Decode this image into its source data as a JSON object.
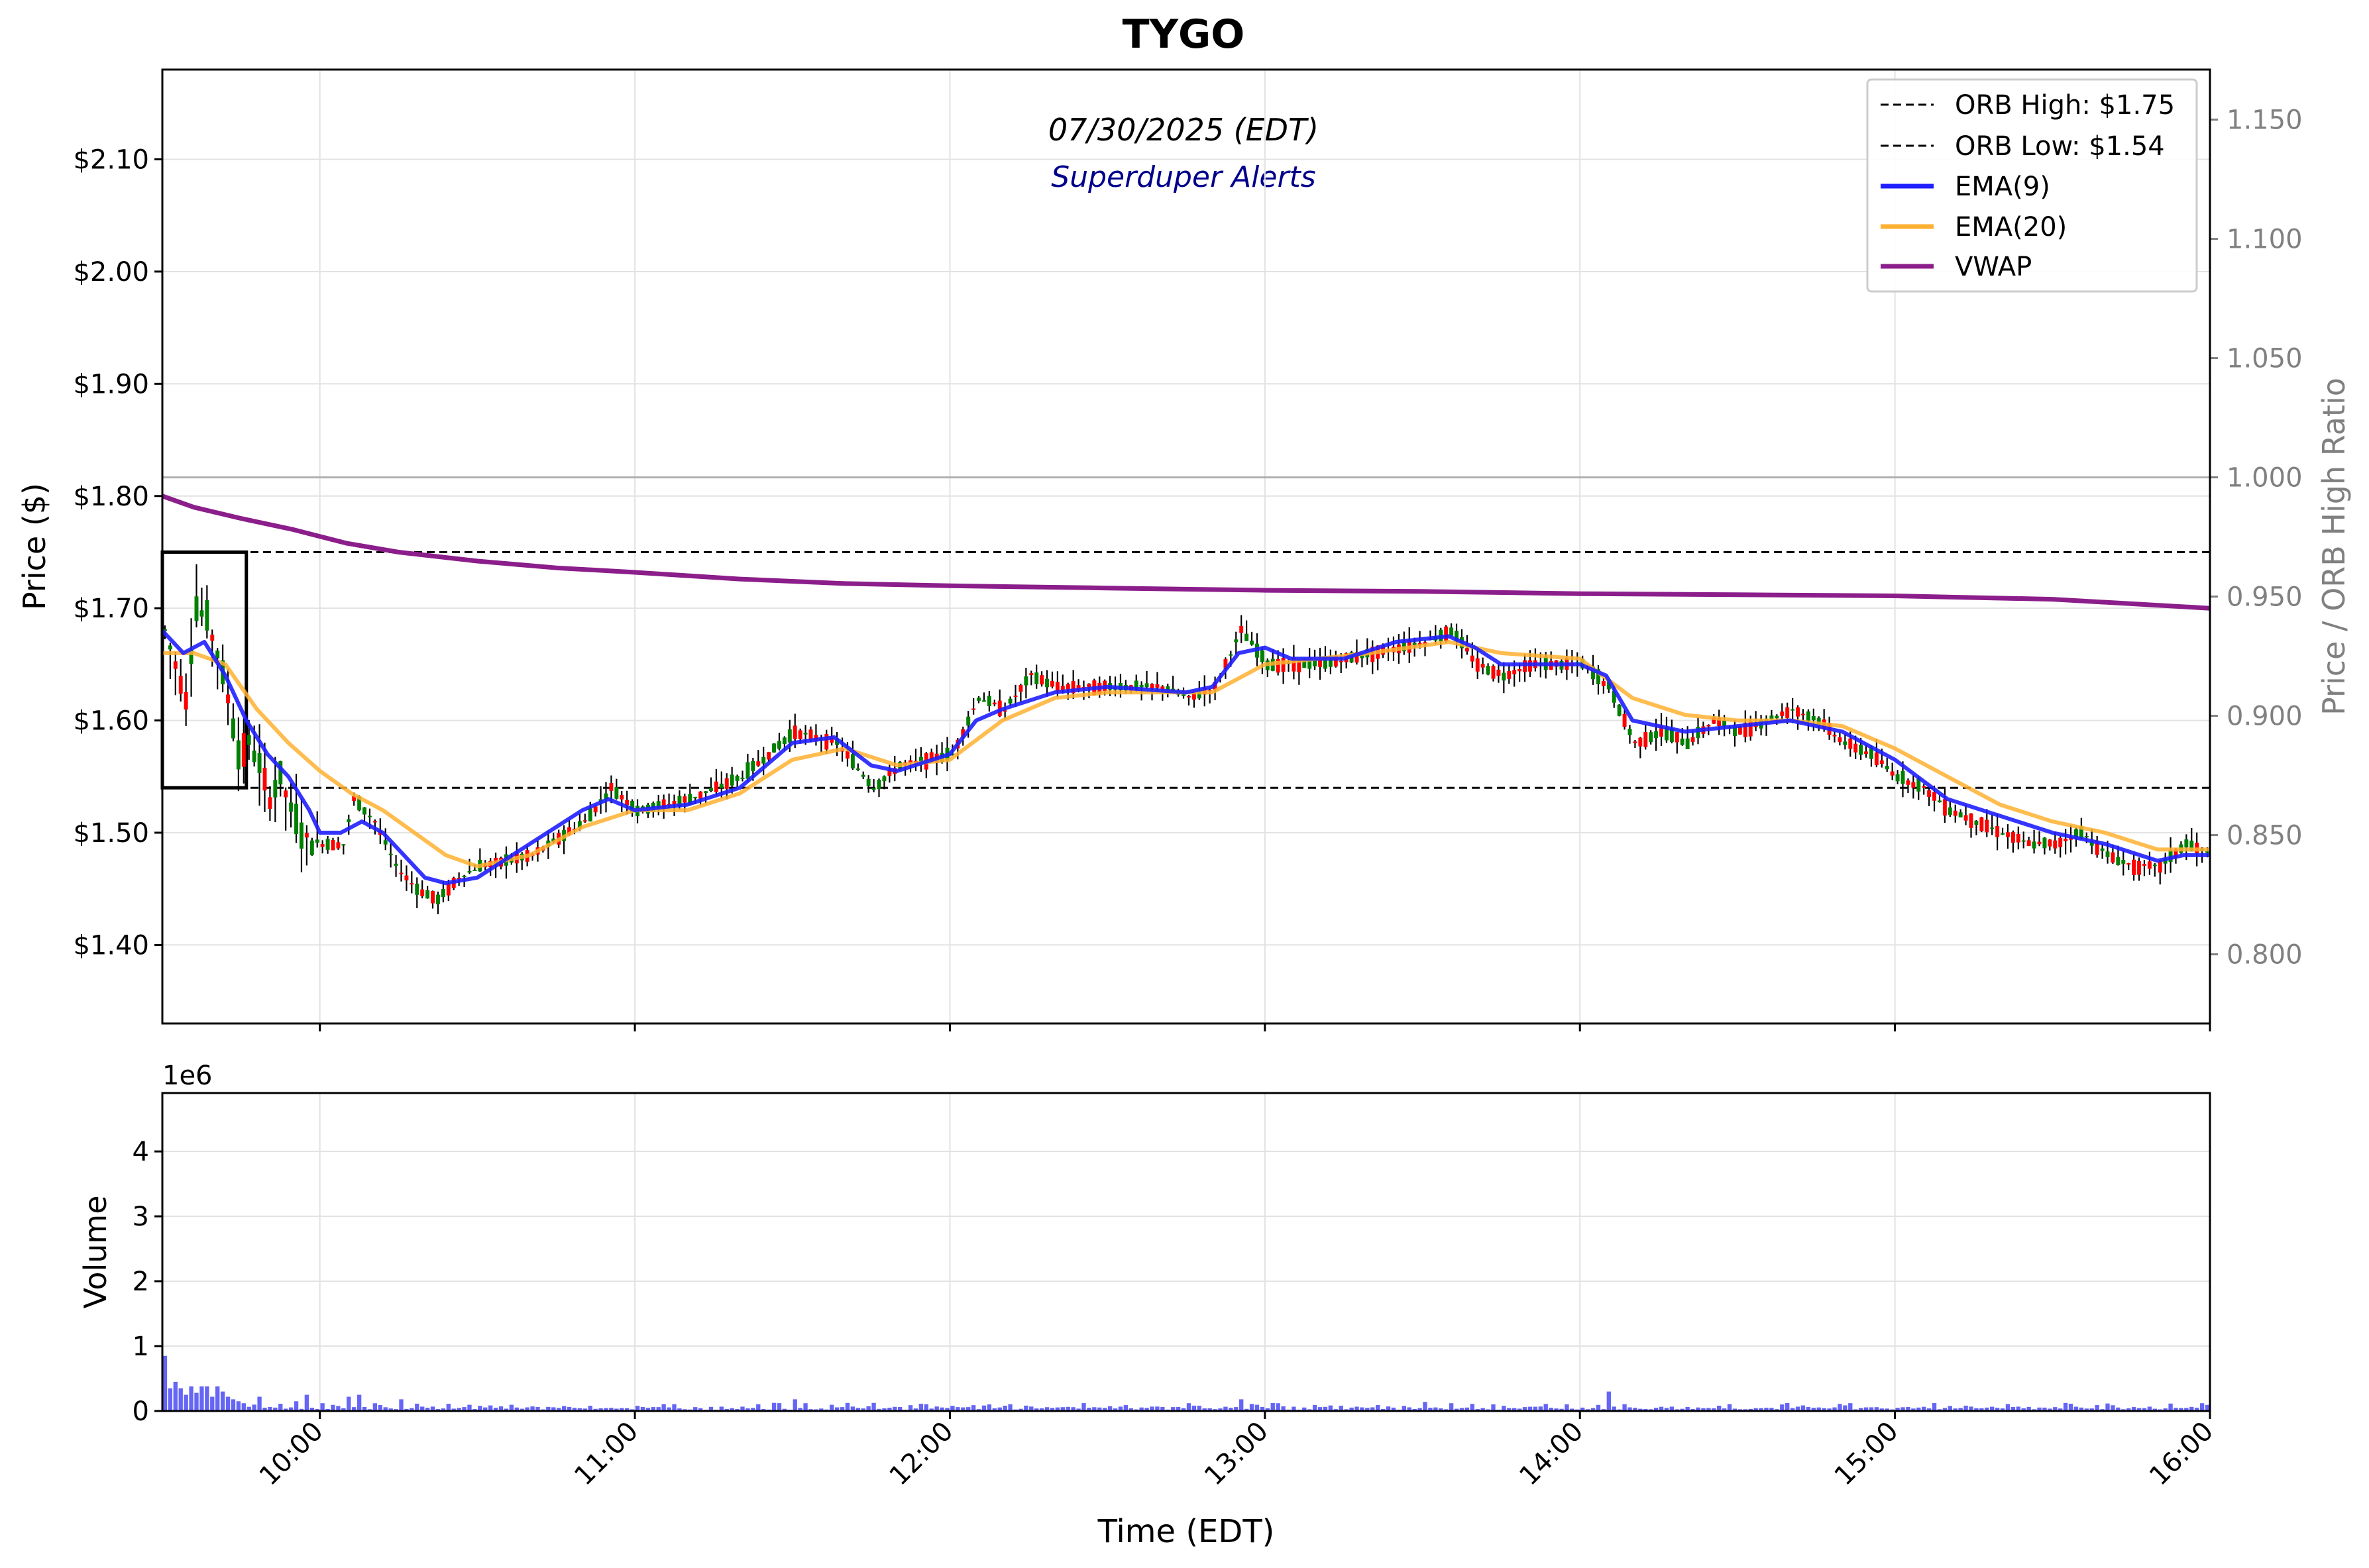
{
  "title": "TYGO",
  "date_text": "07/30/2025 (EDT)",
  "subtitle": "Superduper Alerts",
  "colors": {
    "up": "#008000",
    "down": "#ff0000",
    "wick": "#000000",
    "ema9": "#1f1fff",
    "ema20": "#ffb030",
    "vwap": "#8b1e8b",
    "volume": "#4a4af5",
    "grid": "#e2e2e2",
    "ratio_axis": "#808080",
    "subtitle": "#00008b"
  },
  "chart_data": [
    {
      "type": "candlestick",
      "title": "TYGO",
      "xlabel": "Time (EDT)",
      "ylabel": "Price ($)",
      "y2label": "Price / ORB High Ratio",
      "xlim": [
        "09:30",
        "16:00"
      ],
      "ylim": [
        1.33,
        2.18
      ],
      "y2lim": [
        0.771,
        1.171
      ],
      "y_ticks": [
        "$1.40",
        "$1.50",
        "$1.60",
        "$1.70",
        "$1.80",
        "$1.90",
        "$2.00",
        "$2.10"
      ],
      "y2_ticks": [
        "0.800",
        "0.850",
        "0.900",
        "0.950",
        "1.000",
        "1.050",
        "1.100",
        "1.150"
      ],
      "x_ticks": [
        "10:00",
        "11:00",
        "12:00",
        "13:00",
        "14:00",
        "15:00",
        "16:00"
      ],
      "grid": true,
      "legend_position": "top-right",
      "legend": [
        "ORB High: $1.75",
        "ORB Low: $1.54",
        "EMA(9)",
        "EMA(20)",
        "VWAP"
      ],
      "orb_high": 1.75,
      "orb_low": 1.54,
      "orb_window": [
        "09:30",
        "09:46"
      ],
      "ratio_one_line": 1.0,
      "price_path": [
        [
          "09:30",
          1.68
        ],
        [
          "09:32",
          1.65
        ],
        [
          "09:34",
          1.62
        ],
        [
          "09:36",
          1.7
        ],
        [
          "09:38",
          1.69
        ],
        [
          "09:40",
          1.66
        ],
        [
          "09:42",
          1.62
        ],
        [
          "09:44",
          1.57
        ],
        [
          "09:46",
          1.58
        ],
        [
          "09:48",
          1.56
        ],
        [
          "09:50",
          1.53
        ],
        [
          "09:52",
          1.55
        ],
        [
          "09:54",
          1.52
        ],
        [
          "09:56",
          1.5
        ],
        [
          "09:58",
          1.49
        ],
        [
          "10:00",
          1.49
        ],
        [
          "10:04",
          1.49
        ],
        [
          "10:06",
          1.53
        ],
        [
          "10:10",
          1.51
        ],
        [
          "10:14",
          1.47
        ],
        [
          "10:18",
          1.45
        ],
        [
          "10:22",
          1.44
        ],
        [
          "10:26",
          1.46
        ],
        [
          "10:30",
          1.47
        ],
        [
          "10:40",
          1.48
        ],
        [
          "10:50",
          1.51
        ],
        [
          "10:55",
          1.54
        ],
        [
          "11:00",
          1.52
        ],
        [
          "11:10",
          1.53
        ],
        [
          "11:20",
          1.55
        ],
        [
          "11:25",
          1.57
        ],
        [
          "11:30",
          1.59
        ],
        [
          "11:38",
          1.58
        ],
        [
          "11:45",
          1.54
        ],
        [
          "11:50",
          1.56
        ],
        [
          "12:00",
          1.57
        ],
        [
          "12:05",
          1.62
        ],
        [
          "12:10",
          1.61
        ],
        [
          "12:15",
          1.64
        ],
        [
          "12:20",
          1.63
        ],
        [
          "12:30",
          1.63
        ],
        [
          "12:40",
          1.63
        ],
        [
          "12:45",
          1.62
        ],
        [
          "12:50",
          1.63
        ],
        [
          "12:55",
          1.68
        ],
        [
          "13:00",
          1.65
        ],
        [
          "13:10",
          1.65
        ],
        [
          "13:20",
          1.66
        ],
        [
          "13:30",
          1.67
        ],
        [
          "13:35",
          1.68
        ],
        [
          "13:40",
          1.65
        ],
        [
          "13:45",
          1.64
        ],
        [
          "13:50",
          1.65
        ],
        [
          "14:00",
          1.65
        ],
        [
          "14:05",
          1.63
        ],
        [
          "14:10",
          1.58
        ],
        [
          "14:15",
          1.59
        ],
        [
          "14:20",
          1.58
        ],
        [
          "14:25",
          1.6
        ],
        [
          "14:30",
          1.59
        ],
        [
          "14:35",
          1.6
        ],
        [
          "14:40",
          1.61
        ],
        [
          "14:45",
          1.6
        ],
        [
          "14:50",
          1.58
        ],
        [
          "14:55",
          1.57
        ],
        [
          "15:00",
          1.55
        ],
        [
          "15:05",
          1.54
        ],
        [
          "15:10",
          1.52
        ],
        [
          "15:15",
          1.51
        ],
        [
          "15:20",
          1.5
        ],
        [
          "15:25",
          1.49
        ],
        [
          "15:30",
          1.49
        ],
        [
          "15:35",
          1.5
        ],
        [
          "15:40",
          1.48
        ],
        [
          "15:45",
          1.47
        ],
        [
          "15:50",
          1.47
        ],
        [
          "15:55",
          1.49
        ],
        [
          "16:00",
          1.48
        ]
      ],
      "ema9": [
        [
          "09:30",
          1.68
        ],
        [
          "09:34",
          1.66
        ],
        [
          "09:38",
          1.67
        ],
        [
          "09:42",
          1.64
        ],
        [
          "09:46",
          1.6
        ],
        [
          "09:50",
          1.57
        ],
        [
          "09:54",
          1.55
        ],
        [
          "09:58",
          1.52
        ],
        [
          "10:00",
          1.5
        ],
        [
          "10:04",
          1.5
        ],
        [
          "10:08",
          1.51
        ],
        [
          "10:12",
          1.5
        ],
        [
          "10:16",
          1.48
        ],
        [
          "10:20",
          1.46
        ],
        [
          "10:24",
          1.455
        ],
        [
          "10:30",
          1.46
        ],
        [
          "10:40",
          1.49
        ],
        [
          "10:50",
          1.52
        ],
        [
          "10:55",
          1.53
        ],
        [
          "11:00",
          1.52
        ],
        [
          "11:10",
          1.525
        ],
        [
          "11:20",
          1.54
        ],
        [
          "11:30",
          1.58
        ],
        [
          "11:38",
          1.585
        ],
        [
          "11:45",
          1.56
        ],
        [
          "11:50",
          1.555
        ],
        [
          "12:00",
          1.57
        ],
        [
          "12:05",
          1.6
        ],
        [
          "12:10",
          1.61
        ],
        [
          "12:20",
          1.625
        ],
        [
          "12:30",
          1.63
        ],
        [
          "12:45",
          1.625
        ],
        [
          "12:50",
          1.63
        ],
        [
          "12:55",
          1.66
        ],
        [
          "13:00",
          1.665
        ],
        [
          "13:05",
          1.655
        ],
        [
          "13:15",
          1.655
        ],
        [
          "13:25",
          1.67
        ],
        [
          "13:35",
          1.675
        ],
        [
          "13:40",
          1.665
        ],
        [
          "13:45",
          1.65
        ],
        [
          "14:00",
          1.65
        ],
        [
          "14:05",
          1.64
        ],
        [
          "14:10",
          1.6
        ],
        [
          "14:20",
          1.59
        ],
        [
          "14:30",
          1.595
        ],
        [
          "14:40",
          1.6
        ],
        [
          "14:50",
          1.59
        ],
        [
          "15:00",
          1.565
        ],
        [
          "15:10",
          1.53
        ],
        [
          "15:20",
          1.515
        ],
        [
          "15:30",
          1.5
        ],
        [
          "15:40",
          1.49
        ],
        [
          "15:50",
          1.475
        ],
        [
          "15:55",
          1.48
        ],
        [
          "16:00",
          1.48
        ]
      ],
      "ema20": [
        [
          "09:30",
          1.66
        ],
        [
          "09:36",
          1.66
        ],
        [
          "09:42",
          1.65
        ],
        [
          "09:48",
          1.61
        ],
        [
          "09:54",
          1.58
        ],
        [
          "10:00",
          1.555
        ],
        [
          "10:06",
          1.535
        ],
        [
          "10:12",
          1.52
        ],
        [
          "10:18",
          1.5
        ],
        [
          "10:24",
          1.48
        ],
        [
          "10:30",
          1.47
        ],
        [
          "10:40",
          1.48
        ],
        [
          "10:50",
          1.505
        ],
        [
          "11:00",
          1.52
        ],
        [
          "11:10",
          1.52
        ],
        [
          "11:20",
          1.535
        ],
        [
          "11:30",
          1.565
        ],
        [
          "11:40",
          1.575
        ],
        [
          "11:50",
          1.56
        ],
        [
          "12:00",
          1.565
        ],
        [
          "12:10",
          1.6
        ],
        [
          "12:20",
          1.62
        ],
        [
          "12:30",
          1.625
        ],
        [
          "12:50",
          1.625
        ],
        [
          "13:00",
          1.65
        ],
        [
          "13:10",
          1.655
        ],
        [
          "13:20",
          1.66
        ],
        [
          "13:35",
          1.67
        ],
        [
          "13:45",
          1.66
        ],
        [
          "14:00",
          1.655
        ],
        [
          "14:10",
          1.62
        ],
        [
          "14:20",
          1.605
        ],
        [
          "14:30",
          1.6
        ],
        [
          "14:40",
          1.6
        ],
        [
          "14:50",
          1.595
        ],
        [
          "15:00",
          1.575
        ],
        [
          "15:10",
          1.55
        ],
        [
          "15:20",
          1.525
        ],
        [
          "15:30",
          1.51
        ],
        [
          "15:40",
          1.5
        ],
        [
          "15:50",
          1.485
        ],
        [
          "16:00",
          1.485
        ]
      ],
      "vwap": [
        [
          "09:30",
          1.8
        ],
        [
          "09:36",
          1.79
        ],
        [
          "09:45",
          1.78
        ],
        [
          "09:55",
          1.77
        ],
        [
          "10:05",
          1.758
        ],
        [
          "10:15",
          1.75
        ],
        [
          "10:30",
          1.742
        ],
        [
          "10:45",
          1.736
        ],
        [
          "11:00",
          1.732
        ],
        [
          "11:20",
          1.726
        ],
        [
          "11:40",
          1.722
        ],
        [
          "12:00",
          1.72
        ],
        [
          "12:30",
          1.718
        ],
        [
          "13:00",
          1.716
        ],
        [
          "13:30",
          1.715
        ],
        [
          "14:00",
          1.713
        ],
        [
          "14:30",
          1.712
        ],
        [
          "15:00",
          1.711
        ],
        [
          "15:30",
          1.708
        ],
        [
          "16:00",
          1.7
        ]
      ]
    },
    {
      "type": "bar",
      "ylabel": "Volume",
      "scale_label": "1e6",
      "ylim": [
        0,
        4.9
      ],
      "y_ticks": [
        "0",
        "1",
        "2",
        "3",
        "4"
      ],
      "volume_profile_millions": [
        [
          "09:30",
          0.85
        ],
        [
          "09:31",
          0.35
        ],
        [
          "09:32",
          0.45
        ],
        [
          "09:33",
          0.35
        ],
        [
          "09:34",
          0.25
        ],
        [
          "09:35",
          0.38
        ],
        [
          "09:36",
          0.28
        ],
        [
          "09:37",
          0.38
        ],
        [
          "09:38",
          0.38
        ],
        [
          "09:39",
          0.22
        ],
        [
          "09:40",
          0.38
        ],
        [
          "09:41",
          0.3
        ],
        [
          "09:42",
          0.22
        ],
        [
          "09:43",
          0.18
        ],
        [
          "09:44",
          0.15
        ],
        [
          "09:45",
          0.12
        ],
        [
          "09:48",
          0.22
        ],
        [
          "09:55",
          0.15
        ],
        [
          "09:57",
          0.25
        ],
        [
          "10:00",
          0.12
        ],
        [
          "10:05",
          0.22
        ],
        [
          "10:07",
          0.25
        ],
        [
          "10:15",
          0.18
        ],
        [
          "10:30",
          0.08
        ],
        [
          "11:00",
          0.08
        ],
        [
          "11:30",
          0.18
        ],
        [
          "11:32",
          0.12
        ],
        [
          "12:00",
          0.08
        ],
        [
          "12:45",
          0.12
        ],
        [
          "12:55",
          0.18
        ],
        [
          "13:30",
          0.14
        ],
        [
          "13:35",
          0.12
        ],
        [
          "14:05",
          0.3
        ],
        [
          "14:10",
          0.05
        ],
        [
          "15:00",
          0.05
        ],
        [
          "15:30",
          0.06
        ],
        [
          "15:58",
          0.12
        ]
      ]
    }
  ]
}
